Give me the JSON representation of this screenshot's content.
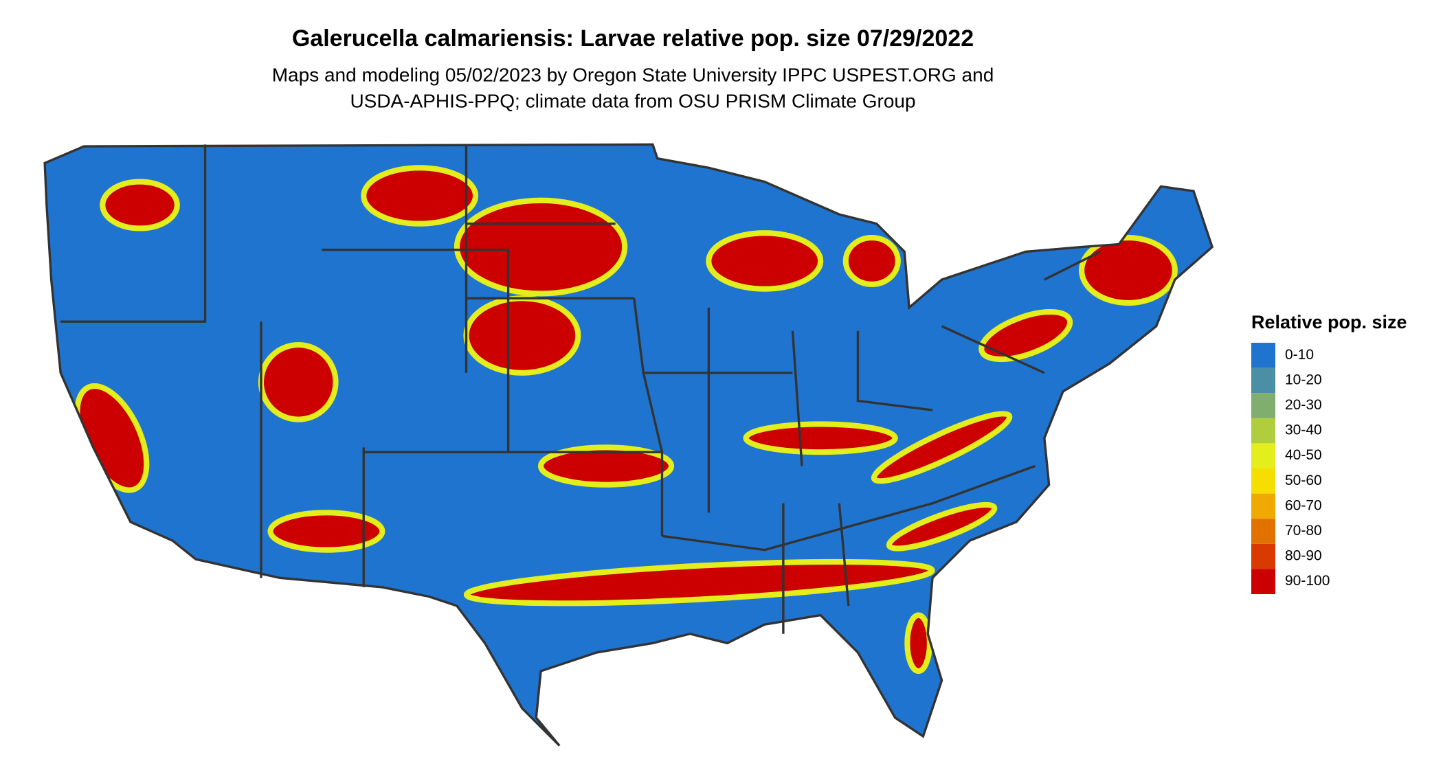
{
  "header": {
    "title": "Galerucella calmariensis: Larvae relative pop. size 07/29/2022",
    "subtitle": [
      "Maps and modeling 05/02/2023 by Oregon State University IPPC USPEST.ORG and",
      "USDA-APHIS-PPQ; climate data from OSU PRISM Climate Group"
    ]
  },
  "legend": {
    "title": "Relative pop. size",
    "items": [
      {
        "label": "0-10",
        "color": "#1f74d0"
      },
      {
        "label": "10-20",
        "color": "#4a8fa6"
      },
      {
        "label": "20-30",
        "color": "#7fae6e"
      },
      {
        "label": "30-40",
        "color": "#afcd3c"
      },
      {
        "label": "40-50",
        "color": "#e3ee1c"
      },
      {
        "label": "50-60",
        "color": "#f5df00"
      },
      {
        "label": "60-70",
        "color": "#f0a900"
      },
      {
        "label": "70-80",
        "color": "#e27200"
      },
      {
        "label": "80-90",
        "color": "#d93a00"
      },
      {
        "label": "90-100",
        "color": "#cc0000"
      }
    ]
  }
}
